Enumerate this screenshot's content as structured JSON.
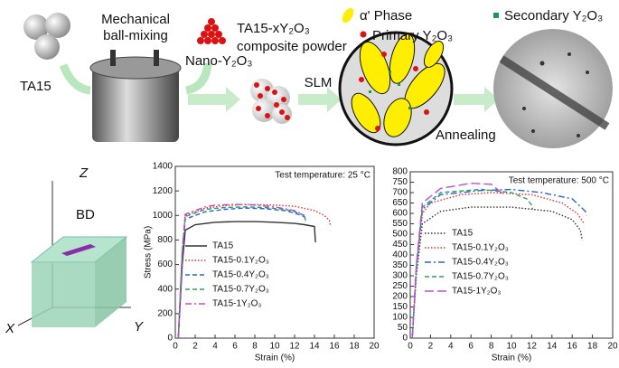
{
  "schematic": {
    "ta15": "TA15",
    "mixing": [
      "Mechanical",
      "ball-mixing"
    ],
    "nano": "Nano-Y₂O₃",
    "powder": [
      "TA15-xY₂O₃",
      "composite powder"
    ],
    "slm": "SLM",
    "alpha": "α' Phase",
    "primary": "Primary Y₂O₃",
    "secondary": "Secondary Y₂O₃",
    "annealing": "Annealing"
  },
  "cube": {
    "z": "Z",
    "bd": "BD",
    "x": "X",
    "y": "Y"
  },
  "chart_data": [
    {
      "type": "line",
      "annotation": "Test temperature: 25 °C",
      "x_label": "Strain (%)",
      "y_label": "Stress (MPa)",
      "xlim": [
        0,
        20
      ],
      "xticks": [
        0,
        2,
        4,
        6,
        8,
        10,
        12,
        14,
        16,
        18,
        20
      ],
      "ylim": [
        0,
        1400
      ],
      "yticks": [
        0,
        200,
        400,
        600,
        800,
        1000,
        1200,
        1400
      ],
      "series": [
        {
          "name": "TA15",
          "color": "#333333",
          "style": "solid",
          "x": [
            0.3,
            0.7,
            1,
            2,
            4,
            6,
            8,
            10,
            12,
            13,
            14,
            14.1
          ],
          "values": [
            0,
            600,
            880,
            925,
            945,
            950,
            950,
            945,
            935,
            925,
            910,
            780
          ]
        },
        {
          "name": "TA15-0.1Y₂O₃",
          "color": "#e03030",
          "style": "dotted",
          "x": [
            0.3,
            0.7,
            1,
            3,
            5,
            7,
            10,
            12,
            14,
            15,
            15.5,
            15.6
          ],
          "values": [
            0,
            700,
            1000,
            1060,
            1080,
            1090,
            1085,
            1075,
            1040,
            1000,
            960,
            920
          ]
        },
        {
          "name": "TA15-0.4Y₂O₃",
          "color": "#2a64d6",
          "style": "dashed",
          "x": [
            0.3,
            0.7,
            1,
            3,
            5,
            7,
            9,
            11,
            12,
            13,
            13.1
          ],
          "values": [
            0,
            680,
            970,
            1030,
            1050,
            1060,
            1055,
            1040,
            1020,
            990,
            950
          ]
        },
        {
          "name": "TA15-0.7Y₂O₃",
          "color": "#2e9e5a",
          "style": "dashed",
          "x": [
            0.3,
            0.7,
            1,
            3,
            5,
            7,
            9,
            11,
            12,
            13,
            13.1
          ],
          "values": [
            0,
            700,
            990,
            1050,
            1065,
            1070,
            1065,
            1050,
            1030,
            1000,
            960
          ]
        },
        {
          "name": "TA15-1Y₂O₃",
          "color": "#c04bd8",
          "style": "dashdot",
          "x": [
            0.3,
            0.7,
            1,
            3,
            4,
            6,
            8,
            10,
            12,
            13
          ],
          "values": [
            0,
            720,
            1010,
            1070,
            1085,
            1090,
            1085,
            1070,
            1040,
            1000
          ]
        }
      ]
    },
    {
      "type": "line",
      "annotation": "Test temperature: 500 °C",
      "x_label": "Strain (%)",
      "xlim": [
        0,
        20
      ],
      "xticks": [
        0,
        2,
        4,
        6,
        8,
        10,
        12,
        14,
        16,
        18,
        20
      ],
      "ylim": [
        0,
        800
      ],
      "yticks": [
        0,
        50,
        100,
        150,
        200,
        250,
        300,
        350,
        400,
        450,
        500,
        550,
        600,
        650,
        700,
        750,
        800
      ],
      "series": [
        {
          "name": "TA15",
          "color": "#333333",
          "style": "dotted",
          "x": [
            0.2,
            0.6,
            1.2,
            3,
            6,
            10,
            14,
            16,
            16.8,
            17
          ],
          "values": [
            0,
            300,
            550,
            610,
            630,
            630,
            610,
            570,
            520,
            470
          ]
        },
        {
          "name": "TA15-0.1Y₂O₃",
          "color": "#e03030",
          "style": "dotted",
          "x": [
            0.2,
            0.6,
            1.2,
            2,
            5,
            8,
            12,
            15,
            16.5,
            17.2
          ],
          "values": [
            0,
            320,
            600,
            650,
            690,
            700,
            690,
            650,
            600,
            550
          ]
        },
        {
          "name": "TA15-0.4Y₂O₃",
          "color": "#2a64d6",
          "style": "dashdot",
          "x": [
            0.2,
            0.6,
            1.2,
            3,
            7,
            10,
            13,
            16,
            17.3,
            17.4
          ],
          "values": [
            0,
            330,
            620,
            690,
            710,
            715,
            700,
            670,
            610,
            590
          ]
        },
        {
          "name": "TA15-0.7Y₂O₃",
          "color": "#2e9e5a",
          "style": "dashed",
          "x": [
            0.2,
            0.6,
            1.2,
            3,
            7,
            10,
            11.5,
            12,
            12.1
          ],
          "values": [
            0,
            340,
            630,
            700,
            715,
            700,
            670,
            640,
            620
          ]
        },
        {
          "name": "TA15-1Y₂O₃",
          "color": "#c04bd8",
          "style": "longdash",
          "x": [
            0.2,
            0.6,
            1.2,
            3,
            6,
            8,
            9,
            9.2
          ],
          "values": [
            0,
            350,
            650,
            720,
            745,
            740,
            700,
            690
          ]
        }
      ]
    }
  ]
}
